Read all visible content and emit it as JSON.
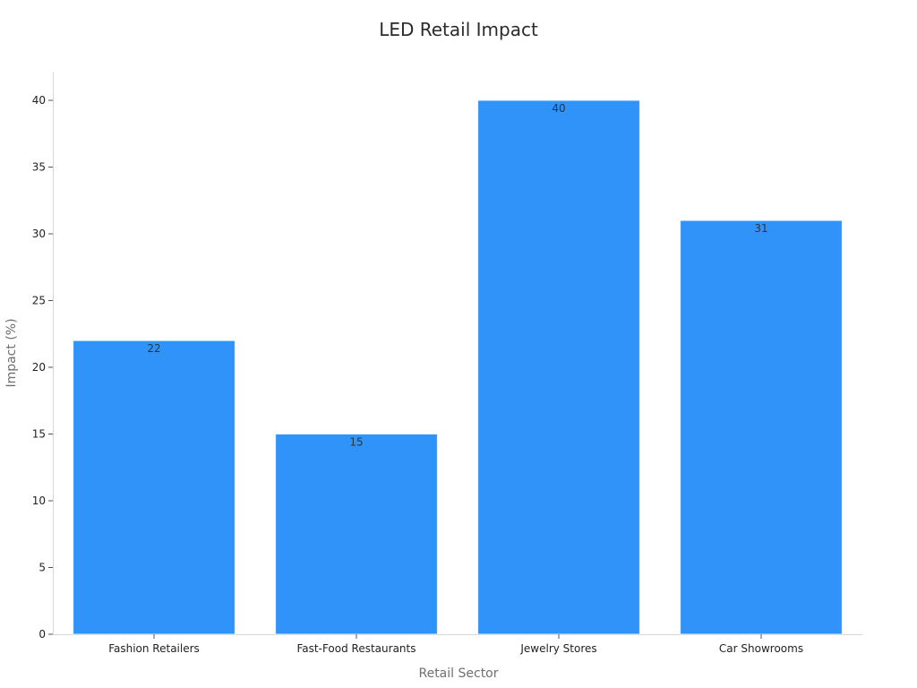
{
  "chart_data": {
    "type": "bar",
    "title": "LED Retail Impact",
    "xlabel": "Retail Sector",
    "ylabel": "Impact (%)",
    "categories": [
      "Fashion Retailers",
      "Fast-Food Restaurants",
      "Jewelry Stores",
      "Car Showrooms"
    ],
    "values": [
      22,
      15,
      40,
      31
    ],
    "data_labels": [
      "22",
      "15",
      "40",
      "31"
    ],
    "yticks": [
      0,
      5,
      10,
      15,
      20,
      25,
      30,
      35,
      40
    ],
    "ylim": [
      0,
      42
    ],
    "grid": false,
    "legend": "none",
    "bar_color": "#2f93f9"
  }
}
